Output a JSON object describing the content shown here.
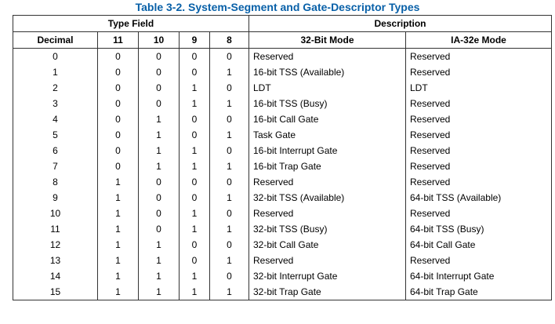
{
  "caption": "Table 3-2.  System-Segment and Gate-Descriptor Types",
  "header": {
    "group_type_field": "Type Field",
    "group_description": "Description",
    "col_decimal": "Decimal",
    "col_11": "11",
    "col_10": "10",
    "col_9": "9",
    "col_8": "8",
    "col_32bit": "32-Bit Mode",
    "col_ia32e": "IA-32e Mode"
  },
  "rows": [
    {
      "decimal": "0",
      "b11": "0",
      "b10": "0",
      "b9": "0",
      "b8": "0",
      "mode32": "Reserved",
      "ia32e": "Reserved"
    },
    {
      "decimal": "1",
      "b11": "0",
      "b10": "0",
      "b9": "0",
      "b8": "1",
      "mode32": "16-bit TSS (Available)",
      "ia32e": "Reserved"
    },
    {
      "decimal": "2",
      "b11": "0",
      "b10": "0",
      "b9": "1",
      "b8": "0",
      "mode32": "LDT",
      "ia32e": "LDT"
    },
    {
      "decimal": "3",
      "b11": "0",
      "b10": "0",
      "b9": "1",
      "b8": "1",
      "mode32": "16-bit TSS (Busy)",
      "ia32e": "Reserved"
    },
    {
      "decimal": "4",
      "b11": "0",
      "b10": "1",
      "b9": "0",
      "b8": "0",
      "mode32": "16-bit Call Gate",
      "ia32e": "Reserved"
    },
    {
      "decimal": "5",
      "b11": "0",
      "b10": "1",
      "b9": "0",
      "b8": "1",
      "mode32": "Task Gate",
      "ia32e": "Reserved"
    },
    {
      "decimal": "6",
      "b11": "0",
      "b10": "1",
      "b9": "1",
      "b8": "0",
      "mode32": "16-bit Interrupt Gate",
      "ia32e": "Reserved"
    },
    {
      "decimal": "7",
      "b11": "0",
      "b10": "1",
      "b9": "1",
      "b8": "1",
      "mode32": "16-bit Trap Gate",
      "ia32e": "Reserved"
    },
    {
      "decimal": "8",
      "b11": "1",
      "b10": "0",
      "b9": "0",
      "b8": "0",
      "mode32": "Reserved",
      "ia32e": "Reserved"
    },
    {
      "decimal": "9",
      "b11": "1",
      "b10": "0",
      "b9": "0",
      "b8": "1",
      "mode32": "32-bit TSS (Available)",
      "ia32e": "64-bit TSS (Available)"
    },
    {
      "decimal": "10",
      "b11": "1",
      "b10": "0",
      "b9": "1",
      "b8": "0",
      "mode32": "Reserved",
      "ia32e": "Reserved"
    },
    {
      "decimal": "11",
      "b11": "1",
      "b10": "0",
      "b9": "1",
      "b8": "1",
      "mode32": "32-bit TSS (Busy)",
      "ia32e": "64-bit TSS (Busy)"
    },
    {
      "decimal": "12",
      "b11": "1",
      "b10": "1",
      "b9": "0",
      "b8": "0",
      "mode32": "32-bit Call Gate",
      "ia32e": "64-bit Call Gate"
    },
    {
      "decimal": "13",
      "b11": "1",
      "b10": "1",
      "b9": "0",
      "b8": "1",
      "mode32": "Reserved",
      "ia32e": "Reserved"
    },
    {
      "decimal": "14",
      "b11": "1",
      "b10": "1",
      "b9": "1",
      "b8": "0",
      "mode32": "32-bit Interrupt Gate",
      "ia32e": "64-bit Interrupt Gate"
    },
    {
      "decimal": "15",
      "b11": "1",
      "b10": "1",
      "b9": "1",
      "b8": "1",
      "mode32": "32-bit Trap Gate",
      "ia32e": "64-bit Trap Gate"
    }
  ],
  "colors": {
    "caption": "#0860a8",
    "border": "#333333"
  }
}
